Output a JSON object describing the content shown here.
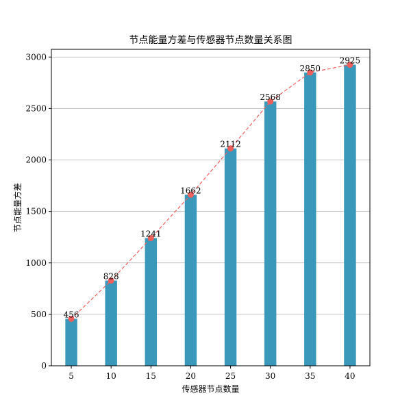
{
  "chart_data": {
    "type": "bar",
    "title": "节点能量方差与传感器节点数量关系图",
    "xlabel": "传感器节点数量",
    "ylabel": "节点能量方差",
    "categories": [
      "5",
      "10",
      "15",
      "20",
      "25",
      "30",
      "35",
      "40"
    ],
    "x": [
      5,
      10,
      15,
      20,
      25,
      30,
      35,
      40
    ],
    "series": [
      {
        "values": [
          456,
          828,
          1241,
          1662,
          2112,
          2568,
          2850,
          2925
        ]
      }
    ],
    "overlay_line": {
      "style": "dashed",
      "color": "#f0605d",
      "marker": "circle"
    },
    "data_labels": [
      "456",
      "828",
      "1241",
      "1662",
      "2112",
      "2568",
      "2850",
      "2925"
    ],
    "yticks": [
      0,
      500,
      1000,
      1500,
      2000,
      2500,
      3000
    ],
    "ylim": [
      0,
      3075
    ],
    "xlim": [
      2.5,
      42.5
    ],
    "grid": "y",
    "colors": {
      "bar": "#3a99bb",
      "line": "#f0605d",
      "grid": "#b0b0b0"
    }
  }
}
